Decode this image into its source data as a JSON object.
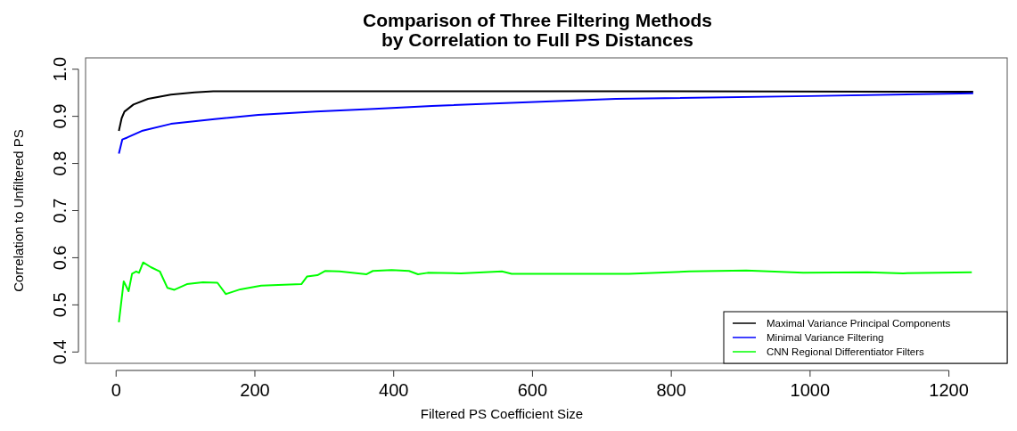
{
  "chart_data": {
    "type": "line",
    "title": "Comparison of Three Filtering Methods\nby Correlation to Full PS Distances",
    "xlabel": "Filtered PS Coefficient Size",
    "ylabel": "Correlation to Unfiltered PS",
    "xlim": [
      -44,
      1284
    ],
    "ylim": [
      0.376,
      1.024
    ],
    "xticks": [
      0,
      200,
      400,
      600,
      800,
      1000,
      1200
    ],
    "yticks": [
      {
        "value": 0.4,
        "label": "0.4"
      },
      {
        "value": 0.5,
        "label": "0.5"
      },
      {
        "value": 0.6,
        "label": "0.6"
      },
      {
        "value": 0.7,
        "label": "0.7"
      },
      {
        "value": 0.8,
        "label": "0.8"
      },
      {
        "value": 0.9,
        "label": "0.9"
      },
      {
        "value": 1.0,
        "label": "1.0"
      }
    ],
    "grid": false,
    "legend": "bottom right",
    "marker": "none",
    "line_style": "solid",
    "series": [
      {
        "name": "Maximal Variance Principal Components",
        "color": "#000000",
        "x": [
          4,
          8,
          12,
          25,
          46,
          79,
          113,
          140,
          400,
          800,
          1235
        ],
        "values": [
          0.869,
          0.896,
          0.91,
          0.925,
          0.937,
          0.946,
          0.951,
          0.953,
          0.953,
          0.953,
          0.952
        ]
      },
      {
        "name": "Minimal Variance Filtering",
        "color": "#0000ff",
        "x": [
          4,
          9,
          16,
          37,
          79,
          142,
          205,
          288,
          372,
          455,
          720,
          1000,
          1235
        ],
        "values": [
          0.821,
          0.851,
          0.855,
          0.869,
          0.884,
          0.894,
          0.903,
          0.91,
          0.916,
          0.922,
          0.937,
          0.943,
          0.949
        ]
      },
      {
        "name": "CNN Regional Differentiator Filters",
        "color": "#00ff00",
        "x": [
          4,
          11,
          18,
          23,
          29,
          33,
          39,
          50,
          63,
          74,
          84,
          102,
          125,
          146,
          158,
          179,
          209,
          267,
          275,
          290,
          301,
          322,
          361,
          370,
          397,
          422,
          435,
          449,
          497,
          556,
          570,
          739,
          826,
          908,
          990,
          1083,
          1134,
          1233
        ],
        "values": [
          0.463,
          0.55,
          0.529,
          0.566,
          0.571,
          0.568,
          0.59,
          0.58,
          0.571,
          0.536,
          0.532,
          0.544,
          0.548,
          0.547,
          0.523,
          0.533,
          0.541,
          0.544,
          0.56,
          0.563,
          0.572,
          0.571,
          0.565,
          0.572,
          0.574,
          0.572,
          0.565,
          0.568,
          0.567,
          0.571,
          0.566,
          0.566,
          0.571,
          0.573,
          0.568,
          0.569,
          0.567,
          0.569
        ]
      }
    ]
  }
}
